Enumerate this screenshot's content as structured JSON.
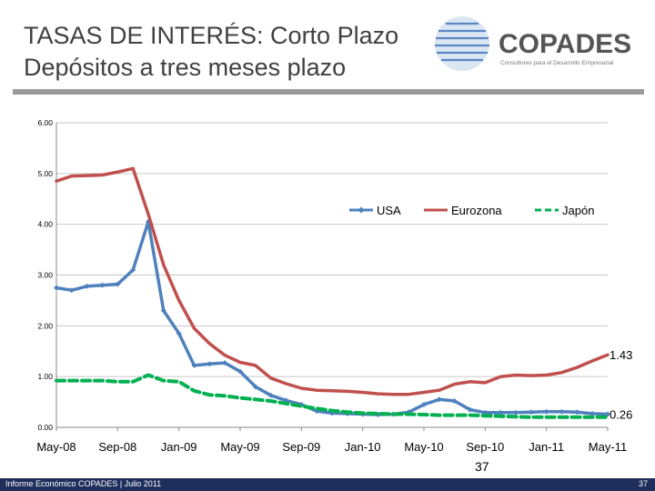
{
  "header": {
    "title_line1": "TASAS DE INTERÉS: Corto Plazo",
    "title_line2": "Depósitos a tres meses plazo",
    "logo_text": "COPADES",
    "logo_tagline": "Consultores para el Desarrollo Empresarial"
  },
  "footer": {
    "left_text": "Informe Económico COPADES  |  Julio 2011",
    "page_number": "37"
  },
  "chart_page_label": "37",
  "colors": {
    "usa": "#4f81bd",
    "eurozona": "#c0504d",
    "japon": "#00b050",
    "footer_bar": "#1f2f5c"
  },
  "chart_data": {
    "type": "line",
    "title": "",
    "xlabel": "",
    "ylabel": "",
    "ylim": [
      0,
      6
    ],
    "yticks": [
      "0.00",
      "1.00",
      "2.00",
      "3.00",
      "4.00",
      "5.00",
      "6.00"
    ],
    "xticks": [
      "May-08",
      "Sep-08",
      "Jan-09",
      "May-09",
      "Sep-09",
      "Jan-10",
      "May-10",
      "Sep-10",
      "Jan-11",
      "May-11"
    ],
    "grid": true,
    "legend_position": "top-right",
    "x_months_from": "May-08",
    "series": [
      {
        "name": "USA",
        "marker": "diamond",
        "values": [
          2.75,
          2.7,
          2.78,
          2.8,
          2.82,
          3.1,
          4.05,
          2.3,
          1.85,
          1.22,
          1.25,
          1.27,
          1.1,
          0.8,
          0.63,
          0.53,
          0.45,
          0.32,
          0.28,
          0.27,
          0.26,
          0.25,
          0.26,
          0.3,
          0.45,
          0.55,
          0.52,
          0.35,
          0.29,
          0.29,
          0.29,
          0.3,
          0.31,
          0.31,
          0.3,
          0.27,
          0.26
        ]
      },
      {
        "name": "Eurozona",
        "marker": "none",
        "values": [
          4.85,
          4.95,
          4.96,
          4.97,
          5.03,
          5.1,
          4.2,
          3.2,
          2.5,
          1.95,
          1.65,
          1.42,
          1.28,
          1.22,
          0.97,
          0.86,
          0.77,
          0.73,
          0.72,
          0.71,
          0.69,
          0.66,
          0.65,
          0.65,
          0.69,
          0.73,
          0.85,
          0.9,
          0.88,
          1.0,
          1.03,
          1.02,
          1.03,
          1.08,
          1.18,
          1.31,
          1.43
        ]
      },
      {
        "name": "Japón",
        "marker": "none",
        "values": [
          0.92,
          0.92,
          0.92,
          0.92,
          0.9,
          0.9,
          1.03,
          0.92,
          0.9,
          0.72,
          0.64,
          0.62,
          0.58,
          0.55,
          0.52,
          0.47,
          0.42,
          0.37,
          0.33,
          0.3,
          0.28,
          0.27,
          0.26,
          0.26,
          0.25,
          0.24,
          0.24,
          0.24,
          0.23,
          0.22,
          0.21,
          0.2,
          0.2,
          0.2,
          0.2,
          0.2,
          0.2
        ]
      }
    ],
    "annotations": [
      {
        "series": "Eurozona",
        "label": "1.43"
      },
      {
        "series": "USA",
        "label": "0.26"
      }
    ]
  }
}
